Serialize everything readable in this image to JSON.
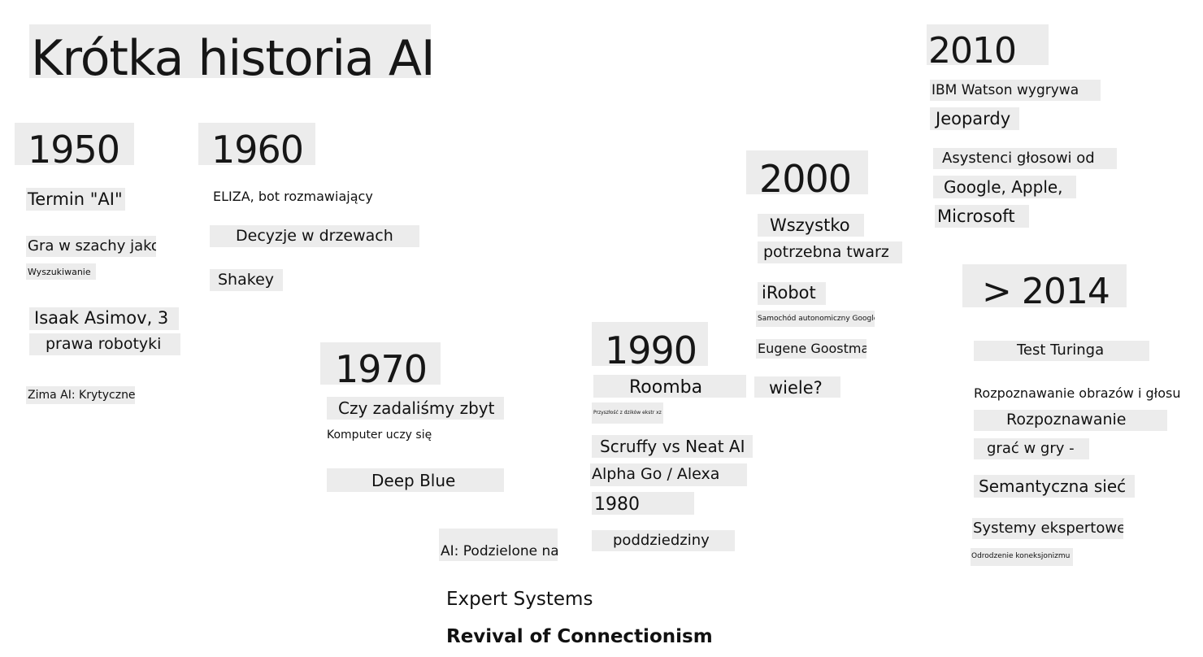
{
  "title": "Krótka historia AI",
  "eras": {
    "y1950": {
      "year": "1950",
      "items": [
        "Termin \"AI\"",
        "Gra w szachy jako",
        "Wyszukiwanie",
        "Isaak Asimov, 3",
        "prawa robotyki",
        "Zima AI: Krytyczne"
      ]
    },
    "y1960": {
      "year": "1960",
      "items": [
        "ELIZA, bot rozmawiający",
        "Decyzje w drzewach",
        "Shakey"
      ]
    },
    "y1970": {
      "year": "1970",
      "items": [
        "Czy zadaliśmy zbyt",
        "Komputer uczy się",
        "Deep Blue",
        "AI: Podzielone na"
      ]
    },
    "y1990": {
      "year": "1990",
      "items": [
        "Roomba",
        "Przyszłość z dzików ekstr xz",
        "Scruffy vs Neat AI",
        "Alpha Go / Alexa",
        "1980",
        "poddziedziny"
      ]
    },
    "y2000": {
      "year": "2000",
      "items": [
        "Wszystko",
        "potrzebna twarz",
        "iRobot",
        "Samochód autonomiczny Google",
        "Eugene Goostman",
        "wiele?"
      ]
    },
    "y2010": {
      "year": "2010",
      "items": [
        "IBM Watson wygrywa",
        "Jeopardy",
        "Asystenci głosowi od",
        "Google, Apple,",
        "Microsoft"
      ]
    },
    "y2014": {
      "year": "> 2014",
      "items": [
        "Test Turinga",
        "Rozpoznawanie obrazów i głosu",
        "Rozpoznawanie",
        "grać w gry -",
        "Semantyczna sieć",
        "Systemy ekspertowe",
        "Odrodzenie koneksjonizmu"
      ]
    }
  },
  "footer": {
    "expert_systems": "Expert Systems",
    "revival": "Revival of Connectionism"
  },
  "colors": {
    "highlight": "#ececec",
    "text": "#111111",
    "background": "#ffffff"
  }
}
